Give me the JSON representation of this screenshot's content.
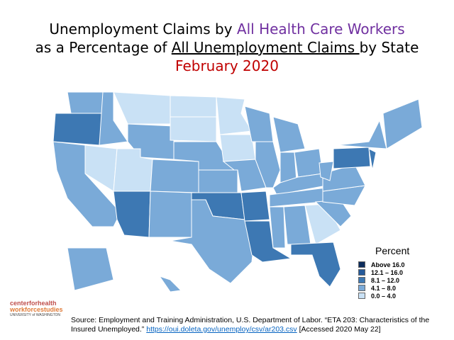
{
  "title": {
    "line1_prefix": "Unemployment Claims by ",
    "line1_highlight": "All Health Care Workers",
    "line2_prefix": "as a Percentage of ",
    "line2_underlined": "All Unemployment Claims ",
    "line2_suffix": "by State",
    "line3": "February 2020"
  },
  "legend": {
    "title": "Percent",
    "items": [
      {
        "label": "Above 16.0",
        "color": "#0d2c5c"
      },
      {
        "label": "12.1 – 16.0",
        "color": "#255a9a"
      },
      {
        "label": "8.1 – 12.0",
        "color": "#3d78b3"
      },
      {
        "label": "4.1 – 8.0",
        "color": "#7aaad8"
      },
      {
        "label": "0.0 – 4.0",
        "color": "#c9e1f5"
      }
    ]
  },
  "source": {
    "text": "Source: Employment and Training Administration, U.S. Department of Labor. “ETA 203: Characteristics of the Insured Unemployed.” ",
    "link": "https://oui.doleta.gov/unemploy/csv/ar203.csv",
    "suffix": " [Accessed 2020 May 22]"
  },
  "logo": {
    "line1": "centerforhealth",
    "line2": "workforcestudies",
    "line3": "UNIVERSITY of WASHINGTON"
  }
}
